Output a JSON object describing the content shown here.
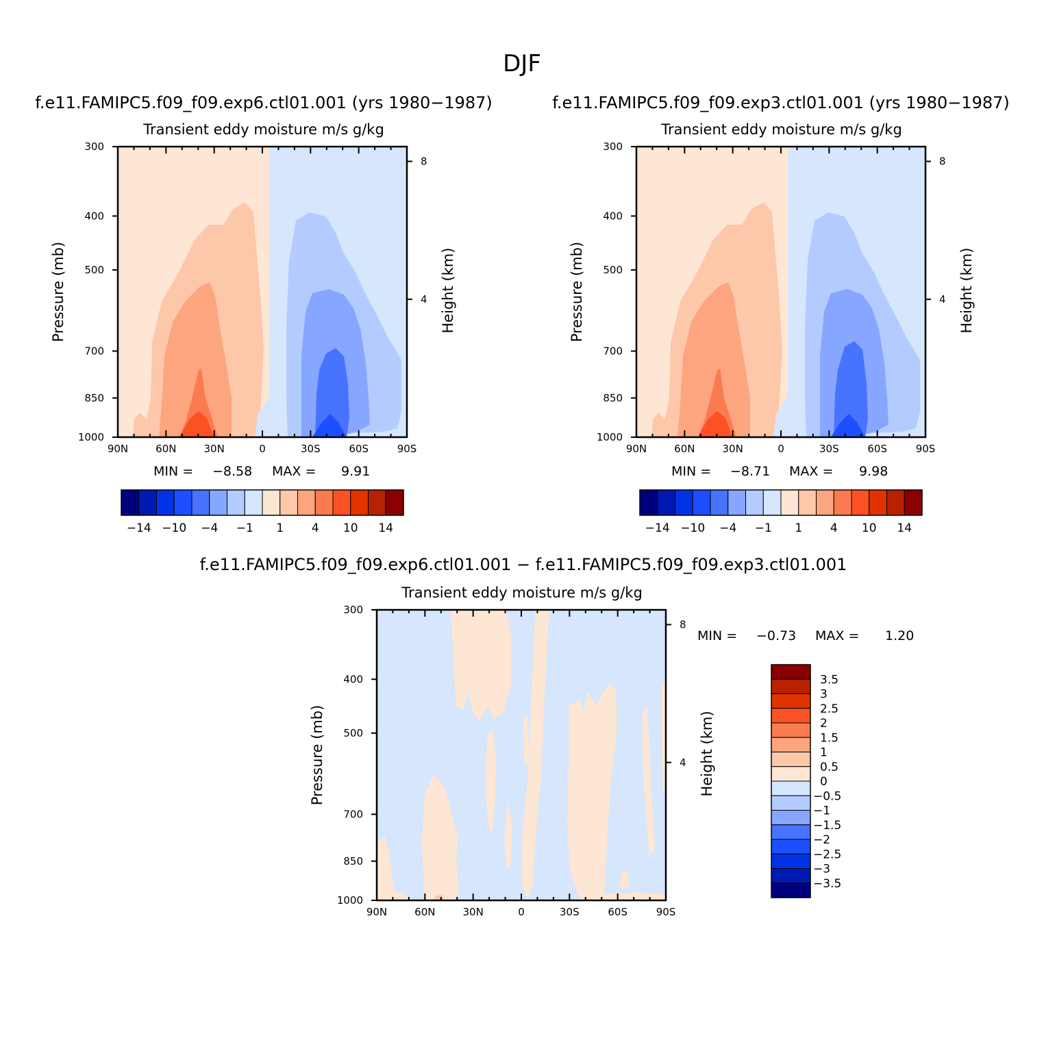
{
  "figure": {
    "title": "DJF"
  },
  "chart_data": [
    {
      "id": "panel1",
      "type": "heatmap",
      "subtitle": "f.e11.FAMIPC5.f09_f09.exp6.ctl01.001 (yrs 1980−1987)",
      "title": "Transient eddy moisture m/s g/kg",
      "ylabel": "Pressure (mb)",
      "y2label": "Height (km)",
      "xticks": [
        "90N",
        "60N",
        "30N",
        "0",
        "30S",
        "60S",
        "90S"
      ],
      "yticks": [
        "300",
        "400",
        "500",
        "700",
        "850",
        "1000"
      ],
      "y2ticks": [
        "8",
        "4"
      ],
      "min_label": "MIN =",
      "min_value": "−8.58",
      "max_label": "MAX =",
      "max_value": "9.91",
      "colorbar_labels": [
        "−14",
        "−10",
        "−4",
        "−1",
        "1",
        "4",
        "10",
        "14"
      ]
    },
    {
      "id": "panel2",
      "type": "heatmap",
      "subtitle": "f.e11.FAMIPC5.f09_f09.exp3.ctl01.001 (yrs 1980−1987)",
      "title": "Transient eddy moisture m/s g/kg",
      "ylabel": "Pressure (mb)",
      "y2label": "Height (km)",
      "xticks": [
        "90N",
        "60N",
        "30N",
        "0",
        "30S",
        "60S",
        "90S"
      ],
      "yticks": [
        "300",
        "400",
        "500",
        "700",
        "850",
        "1000"
      ],
      "y2ticks": [
        "8",
        "4"
      ],
      "min_label": "MIN =",
      "min_value": "−8.71",
      "max_label": "MAX =",
      "max_value": "9.98",
      "colorbar_labels": [
        "−14",
        "−10",
        "−4",
        "−1",
        "1",
        "4",
        "10",
        "14"
      ]
    },
    {
      "id": "panel3",
      "type": "heatmap",
      "subtitle": "f.e11.FAMIPC5.f09_f09.exp6.ctl01.001 − f.e11.FAMIPC5.f09_f09.exp3.ctl01.001",
      "title": "Transient eddy moisture m/s g/kg",
      "ylabel": "Pressure (mb)",
      "y2label": "Height (km)",
      "xticks": [
        "90N",
        "60N",
        "30N",
        "0",
        "30S",
        "60S",
        "90S"
      ],
      "yticks": [
        "300",
        "400",
        "500",
        "700",
        "850",
        "1000"
      ],
      "y2ticks": [
        "8",
        "4"
      ],
      "min_label": "MIN =",
      "min_value": "−0.73",
      "max_label": "MAX =",
      "max_value": "1.20",
      "colorbar_labels": [
        "3.5",
        "3",
        "2.5",
        "2",
        "1.5",
        "1",
        "0.5",
        "0",
        "−0.5",
        "−1",
        "−1.5",
        "−2",
        "−2.5",
        "−3",
        "−3.5"
      ]
    }
  ],
  "colors": {
    "palette": [
      "#00007f",
      "#0019b4",
      "#0032e6",
      "#1e4fff",
      "#4773ff",
      "#86a6ff",
      "#b4cbff",
      "#d5e6fd",
      "#fee6d4",
      "#fdc7aa",
      "#fca57e",
      "#fb7b50",
      "#fb5125",
      "#e13300",
      "#b82100",
      "#8b0000"
    ],
    "neg_light": "#d5e6fd",
    "pos_light": "#fee6d4"
  }
}
